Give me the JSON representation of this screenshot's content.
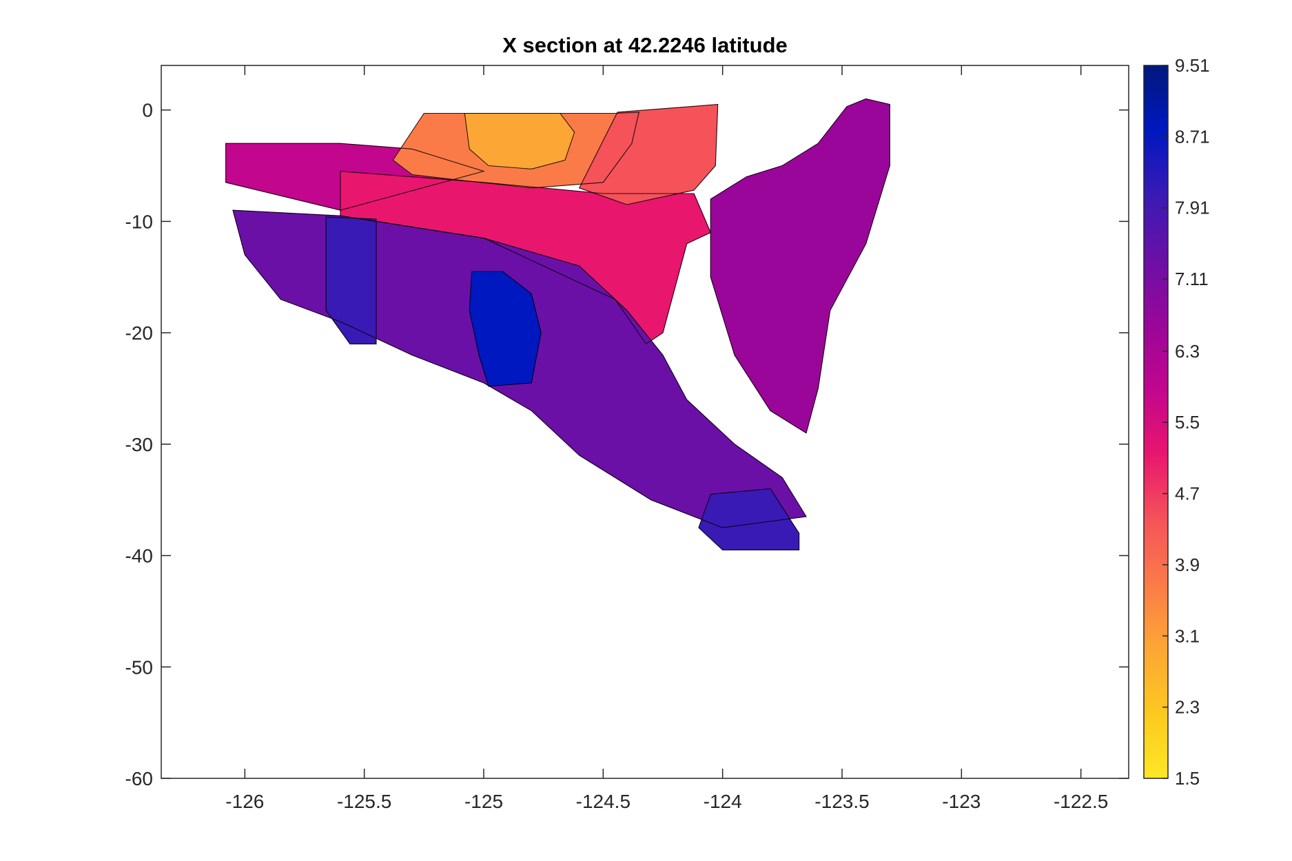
{
  "chart_data": {
    "type": "contour",
    "title": "X section at 42.2246 latitude",
    "xlabel": "",
    "ylabel": "",
    "xlim": [
      -126.35,
      -122.3
    ],
    "ylim": [
      -60,
      4
    ],
    "xticks": [
      -126,
      -125.5,
      -125,
      -124.5,
      -124,
      -123.5,
      -123,
      -122.5
    ],
    "xtick_labels": [
      "-126",
      "-125.5",
      "-125",
      "-124.5",
      "-124",
      "-123.5",
      "-123",
      "-122.5"
    ],
    "yticks": [
      0,
      -10,
      -20,
      -30,
      -40,
      -50,
      -60
    ],
    "ytick_labels": [
      "0",
      "-10",
      "-20",
      "-30",
      "-40",
      "-50",
      "-60"
    ],
    "grid": false,
    "colorbar": {
      "range": [
        1.5,
        9.51
      ],
      "ticks": [
        9.51,
        8.71,
        7.91,
        7.11,
        6.3,
        5.5,
        4.7,
        3.9,
        3.1,
        2.3,
        1.5
      ],
      "tick_labels": [
        "9.51",
        "8.71",
        "7.91",
        "7.11",
        "6.3",
        "5.5",
        "4.7",
        "3.9",
        "3.1",
        "2.3",
        "1.5"
      ],
      "colormap": [
        "#fde725",
        "#fcc91f",
        "#fca635",
        "#fb7b48",
        "#f5525a",
        "#e9166e",
        "#c2068d",
        "#9a0699",
        "#6b10a7",
        "#3a1ab5",
        "#0018c0",
        "#02187a"
      ]
    },
    "regions": [
      {
        "name": "warm-surface-core",
        "value": 2.6,
        "points": [
          [
            -125.08,
            -0.3
          ],
          [
            -124.95,
            -0.3
          ],
          [
            -124.8,
            -0.3
          ],
          [
            -124.68,
            -0.3
          ],
          [
            -124.62,
            -2
          ],
          [
            -124.66,
            -4.5
          ],
          [
            -124.8,
            -5.3
          ],
          [
            -124.98,
            -5
          ],
          [
            -125.06,
            -3.5
          ]
        ]
      },
      {
        "name": "upper-orange-band",
        "value": 3.6,
        "points": [
          [
            -125.25,
            -0.3
          ],
          [
            -124.45,
            -0.3
          ],
          [
            -124.35,
            -0.2
          ],
          [
            -124.38,
            -3
          ],
          [
            -124.5,
            -6.5
          ],
          [
            -124.8,
            -7
          ],
          [
            -125.1,
            -6.3
          ],
          [
            -125.3,
            -5.8
          ],
          [
            -125.38,
            -4.5
          ]
        ]
      },
      {
        "name": "coastal-salmon-plume",
        "value": 4.4,
        "points": [
          [
            -124.44,
            -0.2
          ],
          [
            -124.02,
            0.5
          ],
          [
            -124.03,
            -5
          ],
          [
            -124.12,
            -7.2
          ],
          [
            -124.4,
            -8.5
          ],
          [
            -124.6,
            -7
          ]
        ]
      },
      {
        "name": "pink-wedge",
        "value": 5.0,
        "points": [
          [
            -125.6,
            -5.5
          ],
          [
            -125.0,
            -6.5
          ],
          [
            -124.5,
            -7.5
          ],
          [
            -124.12,
            -7.5
          ],
          [
            -124.05,
            -11
          ],
          [
            -124.15,
            -12
          ],
          [
            -124.25,
            -20
          ],
          [
            -124.32,
            -21
          ],
          [
            -124.45,
            -17
          ],
          [
            -124.7,
            -14.5
          ],
          [
            -125.0,
            -11.5
          ],
          [
            -125.6,
            -9.5
          ]
        ]
      },
      {
        "name": "magenta-upper-band",
        "value": 5.9,
        "points": [
          [
            -126.08,
            -3.0
          ],
          [
            -125.6,
            -3.0
          ],
          [
            -125.3,
            -3.5
          ],
          [
            -125.0,
            -5.5
          ],
          [
            -125.6,
            -9
          ],
          [
            -126.08,
            -6.5
          ]
        ]
      },
      {
        "name": "eastern-magenta-lobe",
        "value": 6.5,
        "points": [
          [
            -124.05,
            -8
          ],
          [
            -123.9,
            -6
          ],
          [
            -123.75,
            -5
          ],
          [
            -123.6,
            -3
          ],
          [
            -123.48,
            0.3
          ],
          [
            -123.4,
            1
          ],
          [
            -123.3,
            0.5
          ],
          [
            -123.3,
            -5
          ],
          [
            -123.4,
            -12
          ],
          [
            -123.55,
            -18
          ],
          [
            -123.6,
            -25
          ],
          [
            -123.65,
            -29
          ],
          [
            -123.8,
            -27
          ],
          [
            -123.95,
            -22
          ],
          [
            -124.05,
            -15
          ]
        ]
      },
      {
        "name": "deep-purple-body",
        "value": 7.3,
        "points": [
          [
            -126.05,
            -9
          ],
          [
            -125.6,
            -9.5
          ],
          [
            -125.0,
            -11.5
          ],
          [
            -124.6,
            -14
          ],
          [
            -124.4,
            -18
          ],
          [
            -124.25,
            -22
          ],
          [
            -124.15,
            -26
          ],
          [
            -123.95,
            -30
          ],
          [
            -123.75,
            -33
          ],
          [
            -123.65,
            -36.5
          ],
          [
            -124.0,
            -37.5
          ],
          [
            -124.3,
            -35
          ],
          [
            -124.6,
            -31
          ],
          [
            -124.8,
            -27
          ],
          [
            -125.0,
            -24.5
          ],
          [
            -125.3,
            -22
          ],
          [
            -125.6,
            -19
          ],
          [
            -125.85,
            -17
          ],
          [
            -126.0,
            -13
          ]
        ]
      },
      {
        "name": "violet-western-column",
        "value": 7.9,
        "points": [
          [
            -125.66,
            -9.6
          ],
          [
            -125.45,
            -9.8
          ],
          [
            -125.45,
            -21
          ],
          [
            -125.56,
            -21
          ],
          [
            -125.66,
            -18
          ]
        ]
      },
      {
        "name": "violet-deep-pocket",
        "value": 8.0,
        "points": [
          [
            -124.05,
            -34.5
          ],
          [
            -123.8,
            -34
          ],
          [
            -123.68,
            -38
          ],
          [
            -123.68,
            -39.5
          ],
          [
            -124.0,
            -39.5
          ],
          [
            -124.1,
            -37.5
          ]
        ]
      },
      {
        "name": "blue-core",
        "value": 8.7,
        "points": [
          [
            -125.05,
            -14.5
          ],
          [
            -124.92,
            -14.5
          ],
          [
            -124.8,
            -16.5
          ],
          [
            -124.76,
            -20
          ],
          [
            -124.8,
            -24.5
          ],
          [
            -124.98,
            -24.8
          ],
          [
            -125.02,
            -22
          ],
          [
            -125.06,
            -18
          ]
        ]
      }
    ]
  }
}
